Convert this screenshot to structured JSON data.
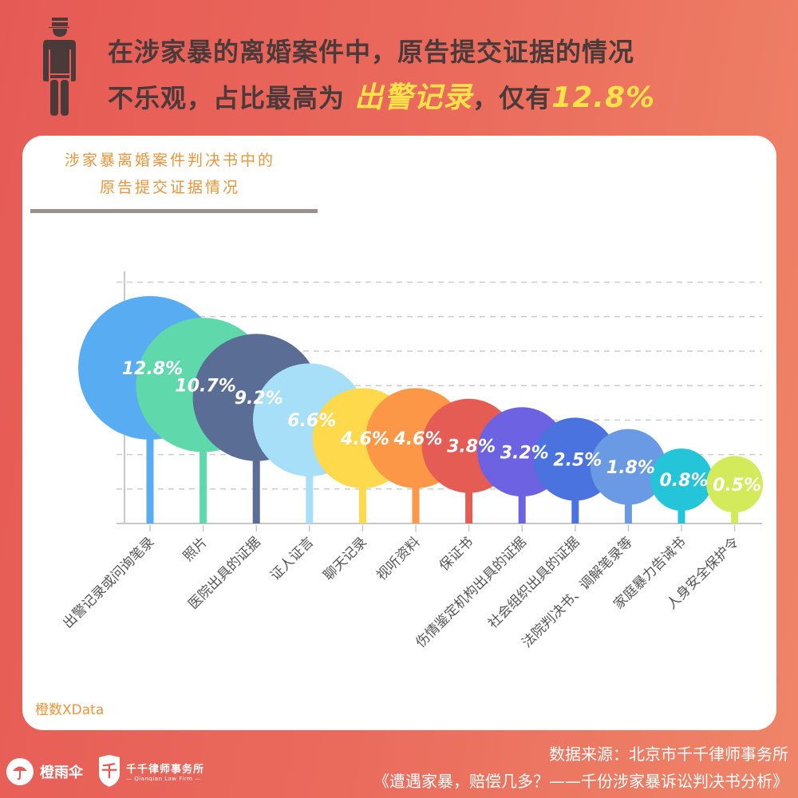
{
  "header": {
    "line1": "在涉家暴的离婚案件中，原告提交证据的情况",
    "line2_prefix": "不乐观，占比最高为 ",
    "line2_highlight": "出警记录",
    "line2_mid": "，仅有",
    "line2_value": "12.8%",
    "icon": "police-officer-icon"
  },
  "card": {
    "title_line1": "涉家暴离婚案件判决书中的",
    "title_line2": "原告提交证据情况",
    "brand": "橙数XData"
  },
  "footer": {
    "source": "数据来源：北京市千千律师事务所",
    "report": "《遭遇家暴，赔偿几多？——千份涉家暴诉讼判决书分析》",
    "logo1_name": "橙雨伞",
    "logo2_name": "千千律师事务所",
    "logo2_en": "— Qianqian Law Firm —",
    "logo2_glyph": "千"
  },
  "colors": {
    "background_start": "#e65a55",
    "background_end": "#ef8568",
    "headline": "#4a3a3a",
    "highlight": "#ffe14a",
    "card_title": "#ef9437",
    "grid": "#cccccc"
  },
  "chart_data": {
    "type": "bubble-lollipop",
    "title": "涉家暴离婚案件判决书中的原告提交证据情况",
    "xlabel": "",
    "ylabel": "",
    "grid": true,
    "unit": "%",
    "categories": [
      "出警记录或问询笔录",
      "照片",
      "医院出具的证据",
      "证人证言",
      "聊天记录",
      "视听资料",
      "保证书",
      "伤情鉴定机构出具的证据",
      "社会组织出具的证据",
      "法院判决书、调解笔录等",
      "家庭暴力告诫书",
      "人身安全保护令"
    ],
    "values": [
      12.8,
      10.7,
      9.2,
      6.6,
      4.6,
      4.6,
      3.8,
      3.2,
      2.5,
      1.8,
      0.8,
      0.5
    ],
    "labels": [
      "12.8%",
      "10.7%",
      "9.2%",
      "6.6%",
      "4.6%",
      "4.6%",
      "3.8%",
      "3.2%",
      "2.5%",
      "1.8%",
      "0.8%",
      "0.5%"
    ],
    "colors": [
      "#58adf2",
      "#5fd9ab",
      "#5a6d94",
      "#a7dff8",
      "#fdd94b",
      "#fd9748",
      "#e55c55",
      "#6c62e2",
      "#4a73e0",
      "#6b9ae5",
      "#24c4d9",
      "#d3ea5a"
    ]
  }
}
